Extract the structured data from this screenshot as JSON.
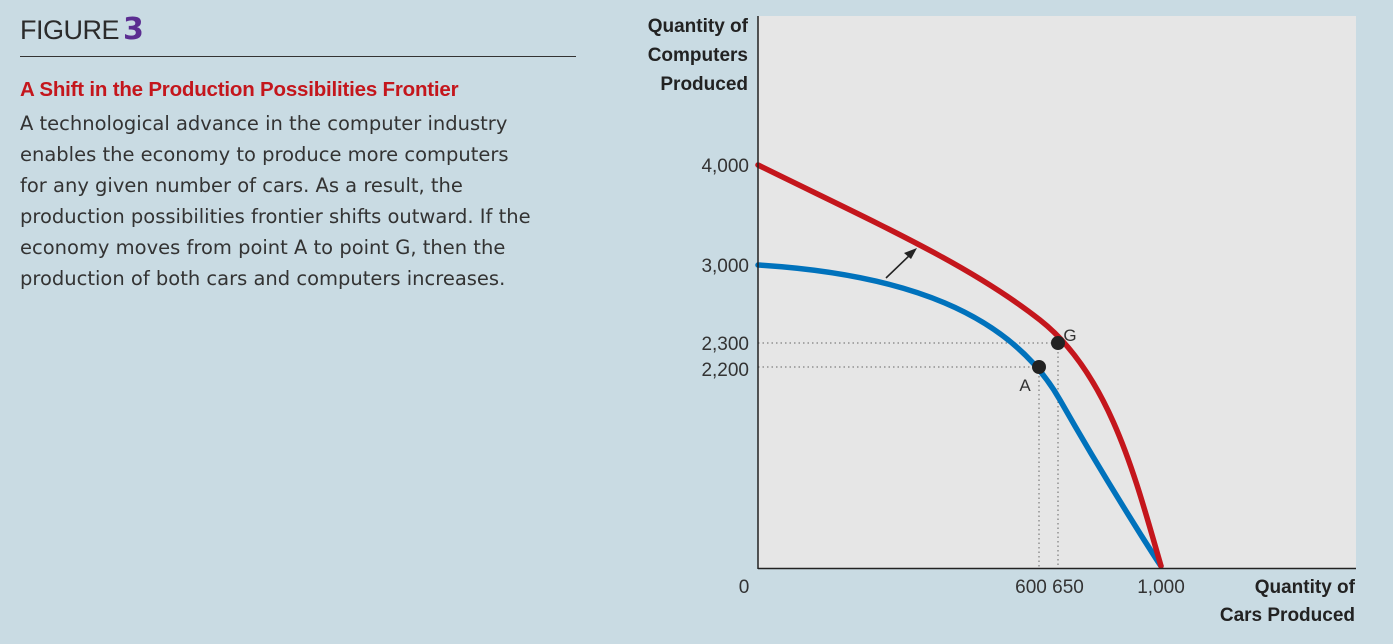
{
  "figure": {
    "label": "FIGURE",
    "number": "3",
    "title": "A Shift in the Production Possibilities Frontier",
    "caption_lines": [
      "A technological advance in the computer industry",
      "enables the economy to produce more computers",
      "for any given number of cars. As a result, the",
      "production possibilities frontier shifts outward. If the",
      "economy moves from point A to point G, then the",
      "production of both cars and computers increases."
    ]
  },
  "colors": {
    "new_frontier": "#c4161c",
    "old_frontier": "#0072bc",
    "plot_bg": "#e6e6e6",
    "title_accent": "#5b2d91"
  },
  "chart_data": {
    "type": "line",
    "ylabel_lines": [
      "Quantity of",
      "Computers",
      "Produced"
    ],
    "xlabel_lines": [
      "Quantity of",
      "Cars Produced"
    ],
    "x_ticks": [
      {
        "value": 0,
        "label": "0"
      },
      {
        "value": 600,
        "label": "600"
      },
      {
        "value": 650,
        "label": "650"
      },
      {
        "value": 1000,
        "label": "1,000"
      }
    ],
    "y_ticks": [
      {
        "value": 4000,
        "label": "4,000"
      },
      {
        "value": 3000,
        "label": "3,000"
      },
      {
        "value": 2300,
        "label": "2,300"
      },
      {
        "value": 2200,
        "label": "2,200"
      }
    ],
    "xlim": [
      0,
      1000
    ],
    "ylim": [
      0,
      4000
    ],
    "series": [
      {
        "key": "old",
        "color": "#0072bc",
        "x0": 0,
        "y0": 3000,
        "x1": 1000,
        "y1": 0
      },
      {
        "key": "new",
        "color": "#c4161c",
        "x0": 0,
        "y0": 4000,
        "x1": 1000,
        "y1": 0
      }
    ],
    "points": [
      {
        "label": "A",
        "x": 600,
        "y": 2200
      },
      {
        "label": "G",
        "x": 650,
        "y": 2300
      }
    ],
    "grid": false
  }
}
